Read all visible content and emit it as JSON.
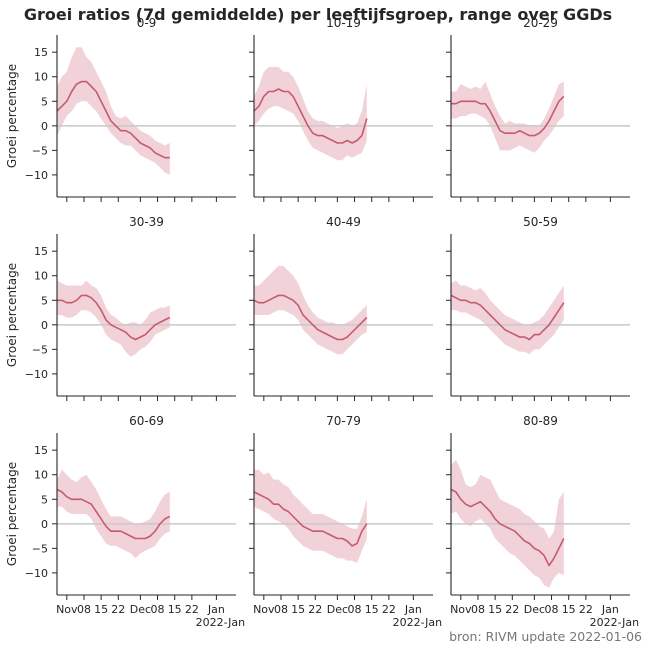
{
  "title": "Groei ratios (7d gemiddelde) per leeftijfsgroep, range over GGDs",
  "source": "bron: RIVM update 2022-01-06",
  "ylabel": "Groei percentage",
  "xticks": [
    "Nov",
    "08",
    "15",
    "22",
    "Dec",
    "08",
    "15",
    "22",
    "Jan"
  ],
  "xyear": "2022-Jan",
  "yticks": [
    "15",
    "10",
    "5",
    "0",
    "−5",
    "−10"
  ],
  "colors": {
    "line": "#c85a6e",
    "band": "#f2d2d9",
    "zero": "#c8c8c8",
    "axis": "#262626"
  },
  "chart_data": {
    "type": "line",
    "title": "Groei ratios (7d gemiddelde) per leeftijfsgroep, range over GGDs",
    "ylabel": "Groei percentage",
    "ylim": [
      -14.5,
      18.5
    ],
    "xdomain": [
      "2021-10-28",
      "2022-01-09"
    ],
    "x_start": "2021-10-28",
    "x_step_days": 2,
    "grid": false,
    "panels": [
      {
        "name": "0-9",
        "values": [
          3,
          4,
          5,
          7,
          8.5,
          9,
          9,
          8,
          7,
          5,
          3,
          1,
          0,
          -1,
          -1,
          -1.5,
          -2.5,
          -3.5,
          -4,
          -4.5,
          -5.5,
          -6,
          -6.5,
          -6.5
        ],
        "lower": [
          -2,
          0,
          2,
          3,
          4.5,
          5,
          5,
          4,
          3,
          1.5,
          0,
          -1.5,
          -2.5,
          -3.5,
          -4,
          -4,
          -5,
          -6,
          -6.5,
          -7,
          -7.5,
          -8.5,
          -9.5,
          -10
        ],
        "upper": [
          8,
          10,
          11,
          14,
          16,
          16,
          14,
          13,
          11,
          9,
          7,
          4,
          2,
          1.5,
          2,
          1,
          0,
          -1,
          -1.5,
          -2,
          -3,
          -3.5,
          -4,
          -3.5
        ]
      },
      {
        "name": "10-19",
        "values": [
          3,
          4,
          6,
          7,
          7,
          7.5,
          7,
          7,
          6,
          4,
          2,
          0,
          -1.5,
          -2,
          -2,
          -2.5,
          -3,
          -3.5,
          -3.5,
          -3,
          -3.5,
          -3,
          -2,
          1.5
        ],
        "lower": [
          0,
          1,
          2.5,
          3.5,
          4,
          4,
          3.5,
          3,
          2.5,
          1,
          -1,
          -3,
          -4.5,
          -5,
          -5.5,
          -6,
          -6.5,
          -7,
          -7,
          -6,
          -6.5,
          -6,
          -5.5,
          -3
        ],
        "upper": [
          6,
          8,
          11,
          12,
          12,
          12,
          11,
          11,
          10,
          8,
          5.5,
          3,
          1.5,
          1,
          1,
          0.5,
          0,
          -0.5,
          0,
          0.5,
          0,
          0.5,
          3,
          8.5
        ]
      },
      {
        "name": "20-29",
        "values": [
          4.5,
          4.5,
          5,
          5,
          5,
          5,
          4.5,
          4.5,
          3,
          1,
          -1,
          -1.5,
          -1.5,
          -1.5,
          -1,
          -1.5,
          -2,
          -2,
          -1.5,
          -0.5,
          1,
          3,
          5,
          6
        ],
        "lower": [
          1.5,
          1.5,
          2,
          2,
          2.5,
          2.5,
          2,
          1.5,
          0,
          -2.5,
          -5,
          -5,
          -5,
          -4.5,
          -4,
          -4.5,
          -5,
          -5.5,
          -4.5,
          -3,
          -2,
          -0.5,
          1,
          2
        ],
        "upper": [
          7,
          7,
          8.5,
          8,
          7.5,
          8,
          7.5,
          9,
          6.5,
          4,
          2,
          0.5,
          1,
          0.5,
          0.5,
          0.5,
          0,
          0,
          0,
          1.5,
          3.5,
          6,
          8.5,
          9
        ]
      },
      {
        "name": "30-39",
        "values": [
          5,
          5,
          4.5,
          4.5,
          5,
          6,
          6,
          5.5,
          4.5,
          3,
          1,
          0,
          -0.5,
          -1,
          -1.5,
          -2.5,
          -3,
          -2.5,
          -2,
          -1,
          0,
          0.5,
          1,
          1.5
        ],
        "lower": [
          2,
          2,
          1.5,
          1.5,
          2,
          3,
          3,
          2.5,
          1.5,
          0,
          -2,
          -3,
          -3.5,
          -4,
          -5.5,
          -6.5,
          -6,
          -5,
          -4.5,
          -3.5,
          -2,
          -1.5,
          -1,
          -0.5
        ],
        "upper": [
          9,
          8.5,
          8,
          8,
          8,
          8,
          9,
          8,
          7.5,
          6,
          3.5,
          2,
          1.5,
          0.5,
          0,
          0.5,
          0.5,
          0,
          1,
          2.5,
          3,
          3.5,
          3.5,
          4
        ]
      },
      {
        "name": "40-49",
        "values": [
          5,
          4.5,
          4.5,
          5,
          5.5,
          6,
          6,
          5.5,
          5,
          4,
          2,
          1,
          0,
          -1,
          -1.5,
          -2,
          -2.5,
          -3,
          -3,
          -2.5,
          -1.5,
          -0.5,
          0.5,
          1.5
        ],
        "lower": [
          2,
          2,
          2,
          2,
          2.5,
          3,
          3,
          2.5,
          2,
          1,
          -1,
          -2,
          -3,
          -4,
          -4.5,
          -5,
          -5.5,
          -6,
          -6,
          -5,
          -4,
          -3,
          -2,
          -1.5
        ],
        "upper": [
          8,
          8,
          9,
          10,
          11,
          12,
          12,
          11,
          10,
          8.5,
          6,
          4,
          2.5,
          1.5,
          1,
          0.5,
          0.5,
          0,
          0,
          0.5,
          1,
          2,
          3,
          4
        ]
      },
      {
        "name": "50-59",
        "values": [
          6,
          5.5,
          5,
          5,
          4.5,
          4.5,
          4,
          3,
          2,
          1,
          0,
          -1,
          -1.5,
          -2,
          -2.5,
          -2.5,
          -3,
          -2,
          -2,
          -1,
          0,
          1.5,
          3,
          4.5
        ],
        "lower": [
          3,
          3,
          2.5,
          2.5,
          2,
          1.5,
          1,
          0,
          -1,
          -2,
          -3,
          -4,
          -4.5,
          -5,
          -5.5,
          -5.5,
          -6,
          -5,
          -5,
          -4,
          -3,
          -2,
          -0.5,
          1
        ],
        "upper": [
          8.5,
          9,
          8,
          8,
          7.5,
          7,
          7.5,
          6.5,
          5,
          4,
          3,
          2,
          1.5,
          1,
          0.5,
          0,
          0,
          0.5,
          1,
          2,
          3.5,
          5,
          6.5,
          8
        ]
      },
      {
        "name": "60-69",
        "values": [
          7,
          6.5,
          5.5,
          5,
          5,
          5,
          4.5,
          4,
          2.5,
          1,
          -0.5,
          -1.5,
          -1.5,
          -1.5,
          -2,
          -2.5,
          -3,
          -3,
          -3,
          -2.5,
          -1.5,
          0,
          1,
          1.5
        ],
        "lower": [
          3.5,
          3.5,
          2.5,
          2,
          2,
          2,
          2,
          1,
          -1,
          -2.5,
          -4,
          -4.5,
          -4.5,
          -5,
          -5.5,
          -6,
          -7,
          -6,
          -5.5,
          -5,
          -4.5,
          -3,
          -2,
          -1.5
        ],
        "upper": [
          9,
          11,
          10,
          9,
          8.5,
          9.5,
          10,
          8.5,
          7,
          5,
          3,
          1.5,
          1.5,
          1.5,
          1,
          0.5,
          0,
          0,
          0.5,
          1,
          2.5,
          4.5,
          6,
          6.5
        ]
      },
      {
        "name": "70-79",
        "values": [
          6.5,
          6,
          5.5,
          5,
          4,
          4,
          3,
          2.5,
          1.5,
          0.5,
          -0.5,
          -1,
          -1.5,
          -1.5,
          -1.5,
          -2,
          -2.5,
          -3,
          -3,
          -3.5,
          -4.5,
          -4,
          -1.5,
          0
        ],
        "lower": [
          3.5,
          3,
          2.5,
          2,
          1,
          0.5,
          0,
          -1,
          -2.5,
          -3.5,
          -4.5,
          -5,
          -5.5,
          -5.5,
          -5.5,
          -6,
          -6.5,
          -7,
          -7,
          -7.5,
          -7.5,
          -8,
          -5.5,
          -3
        ],
        "upper": [
          11,
          11,
          10,
          10.5,
          9,
          9,
          8,
          7.5,
          6,
          5,
          4,
          3,
          2,
          2,
          2,
          1.5,
          1,
          0.5,
          0,
          -0.5,
          -1,
          -1,
          1.5,
          5
        ]
      },
      {
        "name": "80-89",
        "values": [
          7,
          6.5,
          5,
          4,
          3.5,
          4,
          4.5,
          3.5,
          2.5,
          1,
          0,
          -0.5,
          -1,
          -1.5,
          -2.5,
          -3.5,
          -4,
          -5,
          -5.5,
          -6.5,
          -8.5,
          -7,
          -5,
          -3
        ],
        "lower": [
          2,
          2.5,
          1,
          0,
          -0.5,
          0.5,
          1,
          0,
          -1,
          -3,
          -4,
          -5,
          -6,
          -6.5,
          -7.5,
          -8.5,
          -9.5,
          -10.5,
          -11,
          -12.5,
          -13,
          -11,
          -10,
          -10.5
        ],
        "upper": [
          12,
          13,
          11,
          8,
          7.5,
          8,
          10,
          9.5,
          9,
          7,
          5,
          4.5,
          4,
          3.5,
          3,
          2,
          1.5,
          0.5,
          -0.5,
          -1,
          -3,
          -1.5,
          5,
          6.5
        ]
      }
    ]
  }
}
